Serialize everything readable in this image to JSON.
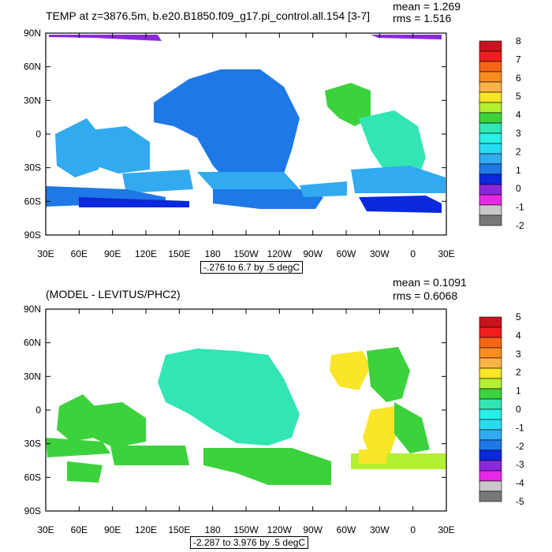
{
  "panels": [
    {
      "title": "TEMP at z=3876.5m, b.e20.B1850.f09_g17.pi_control.all.154 [3-7]",
      "mean": "mean = 1.269",
      "rms": "rms = 1.516",
      "contour_info": "-.276 to 6.7 by .5 degC",
      "colorbar_labels": [
        "8",
        "7",
        "6",
        "5",
        "4",
        "3",
        "2",
        "1",
        "0",
        "-1",
        "-2"
      ],
      "colorbar_colors": [
        "#c8141e",
        "#f01e1e",
        "#f56414",
        "#fa8c1e",
        "#fab446",
        "#fae628",
        "#b4f032",
        "#3cd23c",
        "#32e6b4",
        "#28f0e6",
        "#28dcf0",
        "#32aaf0",
        "#1e78e6",
        "#0a28dc",
        "#8c28dc",
        "#e628e6",
        "#c8c8c8",
        "#787878"
      ]
    },
    {
      "title": "(MODEL - LEVITUS/PHC2)",
      "mean": "mean = 0.1091",
      "rms": "rms = 0.6068",
      "contour_info": "-2.287 to 3.976 by .5 degC",
      "colorbar_labels": [
        "5",
        "4",
        "3",
        "2",
        "1",
        "0",
        "-1",
        "-2",
        "-3",
        "-4",
        "-5"
      ],
      "colorbar_colors": [
        "#c8141e",
        "#f01e1e",
        "#f56414",
        "#fa8c1e",
        "#fab446",
        "#fae628",
        "#b4f032",
        "#3cd23c",
        "#32e6b4",
        "#28f0e6",
        "#28dcf0",
        "#32aaf0",
        "#1e78e6",
        "#0a28dc",
        "#8c28dc",
        "#e628e6",
        "#c8c8c8",
        "#787878"
      ]
    }
  ],
  "axes": {
    "lat_labels": [
      "90N",
      "60N",
      "30N",
      "0",
      "30S",
      "60S",
      "90S"
    ],
    "lon_labels": [
      "30E",
      "60E",
      "90E",
      "120E",
      "150E",
      "180",
      "150W",
      "120W",
      "90W",
      "60W",
      "30W",
      "0",
      "30E"
    ]
  }
}
